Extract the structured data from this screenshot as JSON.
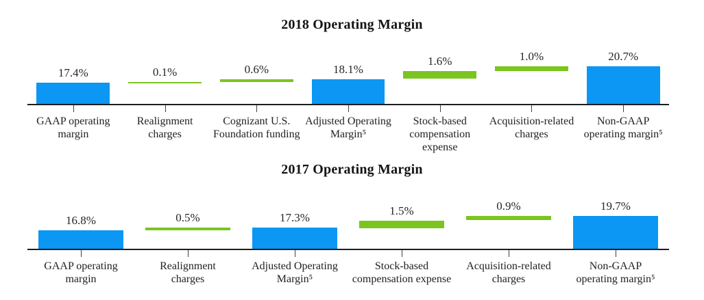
{
  "colors": {
    "blue": "#0b97f3",
    "green": "#7ac51f",
    "axis": "#1c1c1c",
    "tick": "#3f3f3f",
    "text": "#1f1f1f"
  },
  "chart_data": [
    {
      "type": "bar",
      "subtype": "waterfall",
      "title": "2018 Operating Margin",
      "ylabel": "",
      "xlabel": "",
      "ylim": [
        13,
        22
      ],
      "grid": false,
      "legend": "none",
      "unit": "%",
      "series": [
        {
          "label": "GAAP operating\nmargin",
          "value_label": "17.4%",
          "value": 17.4,
          "start": 0,
          "end": 17.4,
          "role": "total",
          "color": "blue"
        },
        {
          "label": "Realignment\ncharges",
          "value_label": "0.1%",
          "value": 0.1,
          "start": 17.4,
          "end": 17.5,
          "role": "delta",
          "color": "green"
        },
        {
          "label": "Cognizant U.S.\nFoundation funding",
          "value_label": "0.6%",
          "value": 0.6,
          "start": 17.5,
          "end": 18.1,
          "role": "delta",
          "color": "green"
        },
        {
          "label": "Adjusted Operating\nMargin⁵",
          "value_label": "18.1%",
          "value": 18.1,
          "start": 0,
          "end": 18.1,
          "role": "subtotal",
          "color": "blue"
        },
        {
          "label": "Stock-based\ncompensation\nexpense",
          "value_label": "1.6%",
          "value": 1.6,
          "start": 18.1,
          "end": 19.7,
          "role": "delta",
          "color": "green"
        },
        {
          "label": "Acquisition-related\ncharges",
          "value_label": "1.0%",
          "value": 1.0,
          "start": 19.7,
          "end": 20.7,
          "role": "delta",
          "color": "green"
        },
        {
          "label": "Non-GAAP\noperating margin⁵",
          "value_label": "20.7%",
          "value": 20.7,
          "start": 0,
          "end": 20.7,
          "role": "total",
          "color": "blue"
        }
      ]
    },
    {
      "type": "bar",
      "subtype": "waterfall",
      "title": "2017 Operating Margin",
      "ylabel": "",
      "xlabel": "",
      "ylim": [
        13,
        21
      ],
      "grid": false,
      "legend": "none",
      "unit": "%",
      "series": [
        {
          "label": "GAAP operating\nmargin",
          "value_label": "16.8%",
          "value": 16.8,
          "start": 0,
          "end": 16.8,
          "role": "total",
          "color": "blue"
        },
        {
          "label": "Realignment\ncharges",
          "value_label": "0.5%",
          "value": 0.5,
          "start": 16.8,
          "end": 17.3,
          "role": "delta",
          "color": "green"
        },
        {
          "label": "Adjusted Operating\nMargin⁵",
          "value_label": "17.3%",
          "value": 17.3,
          "start": 0,
          "end": 17.3,
          "role": "subtotal",
          "color": "blue"
        },
        {
          "label": "Stock-based\ncompensation expense",
          "value_label": "1.5%",
          "value": 1.5,
          "start": 17.3,
          "end": 18.8,
          "role": "delta",
          "color": "green"
        },
        {
          "label": "Acquisition-related\ncharges",
          "value_label": "0.9%",
          "value": 0.9,
          "start": 18.8,
          "end": 19.7,
          "role": "delta",
          "color": "green"
        },
        {
          "label": "Non-GAAP\noperating margin⁵",
          "value_label": "19.7%",
          "value": 19.7,
          "start": 0,
          "end": 19.7,
          "role": "total",
          "color": "blue"
        }
      ]
    }
  ]
}
